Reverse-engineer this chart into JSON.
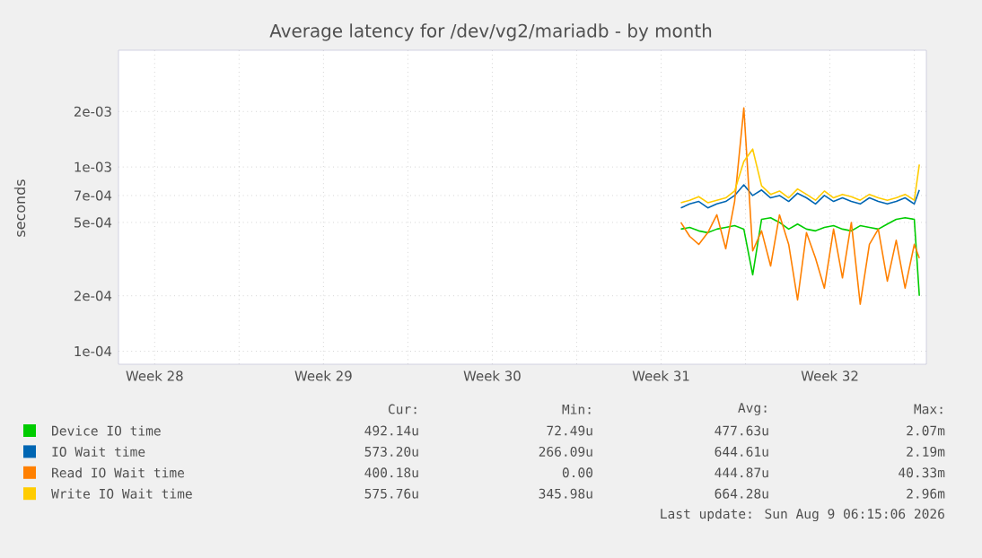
{
  "chart_data": {
    "type": "line",
    "title": "Average latency for /dev/vg2/mariadb - by month",
    "ylabel": "seconds",
    "log": "y",
    "grid": true,
    "legend": "bottom",
    "xlim": [
      "2026-07-07",
      "2026-08-09T12:00"
    ],
    "xticks": [
      {
        "value": "2026-07-08T12:00",
        "label": "Week 28"
      },
      {
        "value": "2026-07-12",
        "label": null
      },
      {
        "value": "2026-07-15T12:00",
        "label": "Week 29"
      },
      {
        "value": "2026-07-19",
        "label": null
      },
      {
        "value": "2026-07-22T12:00",
        "label": "Week 30"
      },
      {
        "value": "2026-07-26",
        "label": null
      },
      {
        "value": "2026-07-29T12:00",
        "label": "Week 31"
      },
      {
        "value": "2026-08-02",
        "label": null
      },
      {
        "value": "2026-08-05T12:00",
        "label": "Week 32"
      },
      {
        "value": "2026-08-09",
        "label": null
      }
    ],
    "ylim": [
      8.5e-05,
      0.0043
    ],
    "yticks": [
      {
        "value": 0.0001,
        "label": "1e-04"
      },
      {
        "value": 0.0002,
        "label": "2e-04"
      },
      {
        "value": 0.0005,
        "label": "5e-04"
      },
      {
        "value": 0.0007,
        "label": "7e-04"
      },
      {
        "value": 0.001,
        "label": "1e-03"
      },
      {
        "value": 0.002,
        "label": "2e-03"
      }
    ],
    "x": [
      "2026-07-30T07:40",
      "2026-07-30T16:30",
      "2026-07-31T01:30",
      "2026-07-31T10:30",
      "2026-07-31T19:30",
      "2026-08-01T04:20",
      "2026-08-01T13:10",
      "2026-08-01T22:20",
      "2026-08-02T07:10",
      "2026-08-02T16:00",
      "2026-08-03T01:00",
      "2026-08-03T09:50",
      "2026-08-03T19:00",
      "2026-08-04T03:50",
      "2026-08-04T12:40",
      "2026-08-04T21:40",
      "2026-08-05T06:30",
      "2026-08-05T15:40",
      "2026-08-06T00:30",
      "2026-08-06T09:20",
      "2026-08-06T18:10",
      "2026-08-07T03:20",
      "2026-08-07T12:10",
      "2026-08-07T21:10",
      "2026-08-08T06:00",
      "2026-08-08T14:50",
      "2026-08-09T00:00",
      "2026-08-09T05:00"
    ],
    "series": [
      {
        "name": "Device IO time",
        "color": "#00cc00",
        "values": [
          0.00046,
          0.00047,
          0.00045,
          0.00044,
          0.00046,
          0.00047,
          0.00048,
          0.00046,
          0.00026,
          0.00052,
          0.00053,
          0.0005,
          0.00046,
          0.00049,
          0.00046,
          0.00045,
          0.00047,
          0.00048,
          0.00046,
          0.00045,
          0.00048,
          0.00047,
          0.00046,
          0.00049,
          0.00052,
          0.00053,
          0.00052,
          0.0002
        ]
      },
      {
        "name": "IO Wait time",
        "color": "#0066b3",
        "values": [
          0.0006,
          0.00063,
          0.00065,
          0.0006,
          0.00063,
          0.00065,
          0.0007,
          0.0008,
          0.0007,
          0.00075,
          0.00068,
          0.0007,
          0.00065,
          0.00072,
          0.00068,
          0.00063,
          0.0007,
          0.00065,
          0.00068,
          0.00065,
          0.00063,
          0.00068,
          0.00065,
          0.00063,
          0.00065,
          0.00068,
          0.00063,
          0.00075
        ]
      },
      {
        "name": "Read IO Wait time",
        "color": "#ff8000",
        "values": [
          0.0005,
          0.00042,
          0.00038,
          0.00044,
          0.00055,
          0.00036,
          0.00065,
          0.00209,
          0.00035,
          0.00045,
          0.00029,
          0.00055,
          0.00038,
          0.00019,
          0.00044,
          0.00032,
          0.00022,
          0.00046,
          0.00025,
          0.0005,
          0.00018,
          0.00038,
          0.00046,
          0.00024,
          0.0004,
          0.00022,
          0.00038,
          0.00032
        ]
      },
      {
        "name": "Write IO Wait time",
        "color": "#ffcc00",
        "values": [
          0.00064,
          0.00066,
          0.00069,
          0.00064,
          0.00066,
          0.00068,
          0.00074,
          0.00107,
          0.00125,
          0.00079,
          0.00071,
          0.00074,
          0.00068,
          0.00076,
          0.00071,
          0.00066,
          0.00074,
          0.00068,
          0.00071,
          0.00069,
          0.00066,
          0.00071,
          0.00068,
          0.00066,
          0.00068,
          0.00071,
          0.00066,
          0.00103
        ]
      }
    ],
    "annotations": [
      "Cur:",
      "Min:",
      "Avg:",
      "Max:",
      "492.14u",
      "72.49u",
      "477.63u",
      "2.07m",
      "573.20u",
      "266.09u",
      "644.61u",
      "2.19m",
      "400.18u",
      "0.00",
      "444.87u",
      "40.33m",
      "575.76u",
      "345.98u",
      "664.28u",
      "2.96m",
      "Last update: Sun Aug  9 06:15:06 2026"
    ]
  }
}
